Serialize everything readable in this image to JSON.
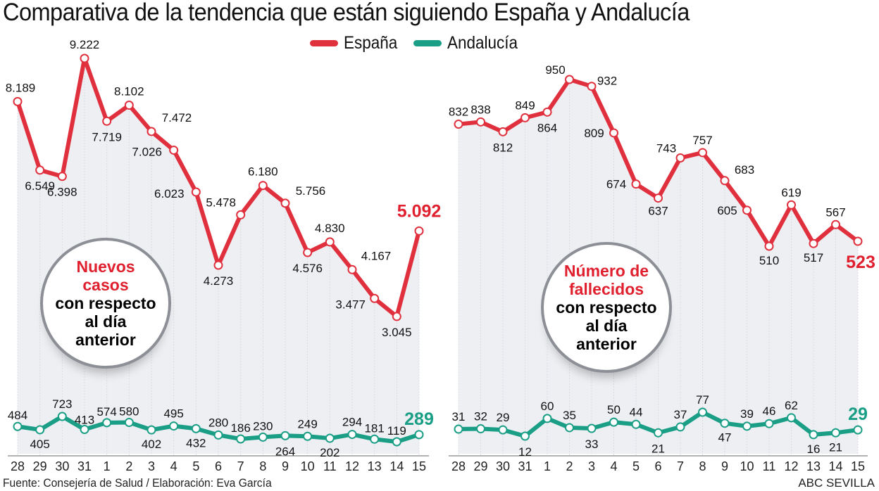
{
  "title": "Comparativa de la tendencia que están siguiendo España y Andalucía",
  "legend": [
    {
      "name": "España",
      "color": "#e0303e"
    },
    {
      "name": "Andalucía",
      "color": "#1a9e86"
    }
  ],
  "bubbles": {
    "left": {
      "highlight": [
        "Nuevos",
        "casos"
      ],
      "rest": [
        "con respecto",
        "al día",
        "anterior"
      ]
    },
    "right": {
      "highlight": [
        "Número de",
        "fallecidos"
      ],
      "rest": [
        "con respecto",
        "al día",
        "anterior"
      ]
    }
  },
  "footer": {
    "source": "Fuente: Consejería de Salud / Elaboración: Eva García",
    "brand": "ABC SEVILLA"
  },
  "chart_data": [
    {
      "type": "line",
      "title": "Nuevos casos con respecto al día anterior",
      "categories": [
        "28",
        "29",
        "30",
        "31",
        "1",
        "2",
        "3",
        "4",
        "5",
        "6",
        "7",
        "8",
        "9",
        "10",
        "11",
        "12",
        "13",
        "14",
        "15"
      ],
      "series": [
        {
          "name": "España",
          "values": [
            8189,
            6549,
            6398,
            9222,
            7719,
            8102,
            7472,
            7026,
            6023,
            4273,
            5478,
            6180,
            5756,
            4576,
            4830,
            4167,
            3477,
            3045,
            5092
          ],
          "labels": [
            "8.189",
            "6.549",
            "6.398",
            "9.222",
            "7.719",
            "8.102",
            "7.472",
            "7.026",
            "6.023",
            "4.273",
            "5.478",
            "6.180",
            "5.756",
            "4.576",
            "4.830",
            "4.167",
            "3.477",
            "3.045",
            "5.092"
          ]
        },
        {
          "name": "Andalucía",
          "values": [
            484,
            405,
            723,
            413,
            574,
            580,
            402,
            495,
            432,
            280,
            186,
            230,
            264,
            249,
            202,
            294,
            181,
            119,
            289
          ],
          "labels": [
            "484",
            "405",
            "723",
            "413",
            "574",
            "580",
            "402",
            "495",
            "432",
            "280",
            "186",
            "230",
            "264",
            "249",
            "202",
            "294",
            "181",
            "119",
            "289"
          ]
        }
      ],
      "xlabel": "",
      "ylabel": "",
      "grid": "vertical dotted"
    },
    {
      "type": "line",
      "title": "Número de fallecidos con respecto al día anterior",
      "categories": [
        "28",
        "29",
        "30",
        "31",
        "1",
        "2",
        "3",
        "4",
        "5",
        "6",
        "7",
        "8",
        "9",
        "10",
        "11",
        "12",
        "13",
        "14",
        "15"
      ],
      "series": [
        {
          "name": "España",
          "values": [
            832,
            838,
            812,
            849,
            864,
            950,
            932,
            809,
            674,
            637,
            743,
            757,
            683,
            605,
            510,
            619,
            517,
            567,
            523
          ],
          "labels": [
            "832",
            "838",
            "812",
            "849",
            "864",
            "950",
            "932",
            "809",
            "674",
            "637",
            "743",
            "757",
            "683",
            "605",
            "510",
            "619",
            "517",
            "567",
            "523"
          ]
        },
        {
          "name": "Andalucía",
          "values": [
            31,
            32,
            29,
            12,
            60,
            35,
            33,
            50,
            44,
            21,
            37,
            77,
            47,
            39,
            46,
            62,
            16,
            21,
            29
          ],
          "labels": [
            "31",
            "32",
            "29",
            "12",
            "60",
            "35",
            "33",
            "50",
            "44",
            "21",
            "37",
            "77",
            "47",
            "39",
            "46",
            "62",
            "16",
            "21",
            "29"
          ]
        }
      ],
      "xlabel": "",
      "ylabel": "",
      "grid": "vertical dotted"
    }
  ]
}
